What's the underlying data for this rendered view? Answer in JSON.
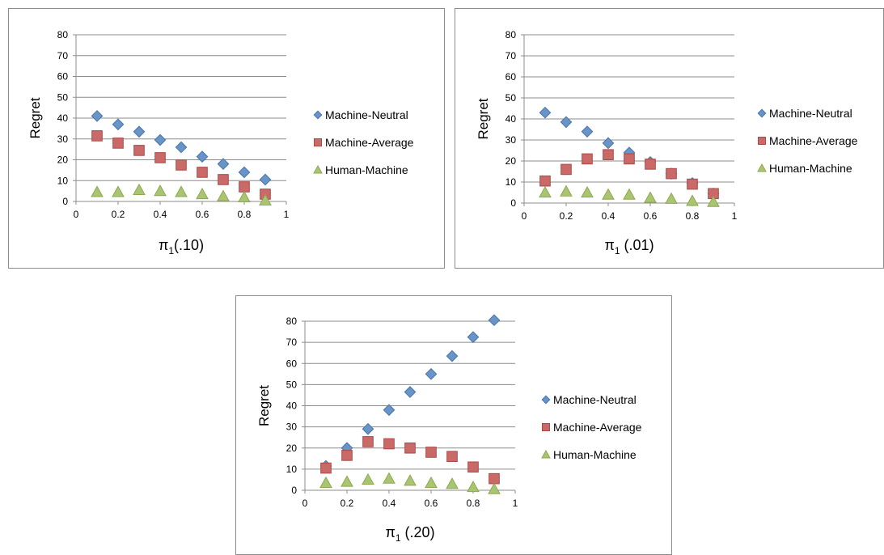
{
  "chart_data": [
    {
      "type": "scatter",
      "ylabel": "Regret",
      "xlabel_main": "π",
      "xlabel_sub": "1",
      "xlabel_suffix": "(.10)",
      "xlim": [
        0,
        1
      ],
      "ylim": [
        0,
        80
      ],
      "xticks": [
        "0",
        "0.2",
        "0.4",
        "0.6",
        "0.8",
        "1"
      ],
      "yticks": [
        "0",
        "10",
        "20",
        "30",
        "40",
        "50",
        "60",
        "70",
        "80"
      ],
      "x": [
        0.1,
        0.2,
        0.3,
        0.4,
        0.5,
        0.6,
        0.7,
        0.8,
        0.9
      ],
      "series": [
        {
          "name": "Machine-Neutral",
          "marker": "diamond",
          "color": "#4f81bd",
          "values": [
            41,
            37,
            33.5,
            29.5,
            26,
            21.5,
            18,
            14,
            10.5
          ]
        },
        {
          "name": "Machine-Average",
          "marker": "square",
          "color": "#c0504d",
          "values": [
            31.5,
            28,
            24.5,
            21,
            17.5,
            14,
            10.5,
            7,
            3.5
          ]
        },
        {
          "name": "Human-Machine",
          "marker": "triangle",
          "color": "#9bbb59",
          "values": [
            4.5,
            4.5,
            5.5,
            5,
            4.5,
            3.5,
            2.5,
            2,
            0.5
          ]
        }
      ],
      "legend_position": "right"
    },
    {
      "type": "scatter",
      "ylabel": "Regret",
      "xlabel_main": "π",
      "xlabel_sub": "1",
      "xlabel_suffix": " (.01)",
      "xlim": [
        0,
        1
      ],
      "ylim": [
        0,
        80
      ],
      "xticks": [
        "0",
        "0.2",
        "0.4",
        "0.6",
        "0.8",
        "1"
      ],
      "yticks": [
        "0",
        "10",
        "20",
        "30",
        "40",
        "50",
        "60",
        "70",
        "80"
      ],
      "x": [
        0.1,
        0.2,
        0.3,
        0.4,
        0.5,
        0.6,
        0.7,
        0.8,
        0.9
      ],
      "series": [
        {
          "name": "Machine-Neutral",
          "marker": "diamond",
          "color": "#4f81bd",
          "values": [
            43,
            38.5,
            34,
            28.5,
            24,
            19.5,
            14,
            9.5,
            4.5
          ]
        },
        {
          "name": "Machine-Average",
          "marker": "square",
          "color": "#c0504d",
          "values": [
            10.5,
            16,
            21,
            23,
            21,
            18.5,
            14,
            9,
            4.5
          ]
        },
        {
          "name": "Human-Machine",
          "marker": "triangle",
          "color": "#9bbb59",
          "values": [
            5,
            5.5,
            5,
            4,
            4,
            2.5,
            2,
            1,
            0.5
          ]
        }
      ],
      "legend_position": "right"
    },
    {
      "type": "scatter",
      "ylabel": "Regret",
      "xlabel_main": "π",
      "xlabel_sub": "1",
      "xlabel_suffix": " (.20)",
      "xlim": [
        0,
        1
      ],
      "ylim": [
        0,
        80
      ],
      "xticks": [
        "0",
        "0.2",
        "0.4",
        "0.6",
        "0.8",
        "1"
      ],
      "yticks": [
        "0",
        "10",
        "20",
        "30",
        "40",
        "50",
        "60",
        "70",
        "80"
      ],
      "x": [
        0.1,
        0.2,
        0.3,
        0.4,
        0.5,
        0.6,
        0.7,
        0.8,
        0.9
      ],
      "series": [
        {
          "name": "Machine-Neutral",
          "marker": "diamond",
          "color": "#4f81bd",
          "values": [
            11.5,
            20,
            29,
            38,
            46.5,
            55,
            63.5,
            72.5,
            80.5
          ]
        },
        {
          "name": "Machine-Average",
          "marker": "square",
          "color": "#c0504d",
          "values": [
            10.5,
            16.5,
            23,
            22,
            20,
            18,
            16,
            11,
            5.5
          ]
        },
        {
          "name": "Human-Machine",
          "marker": "triangle",
          "color": "#9bbb59",
          "values": [
            3.5,
            4,
            5,
            5.5,
            4.5,
            3.5,
            3,
            1.5,
            0.5
          ]
        }
      ],
      "legend_position": "right"
    }
  ]
}
